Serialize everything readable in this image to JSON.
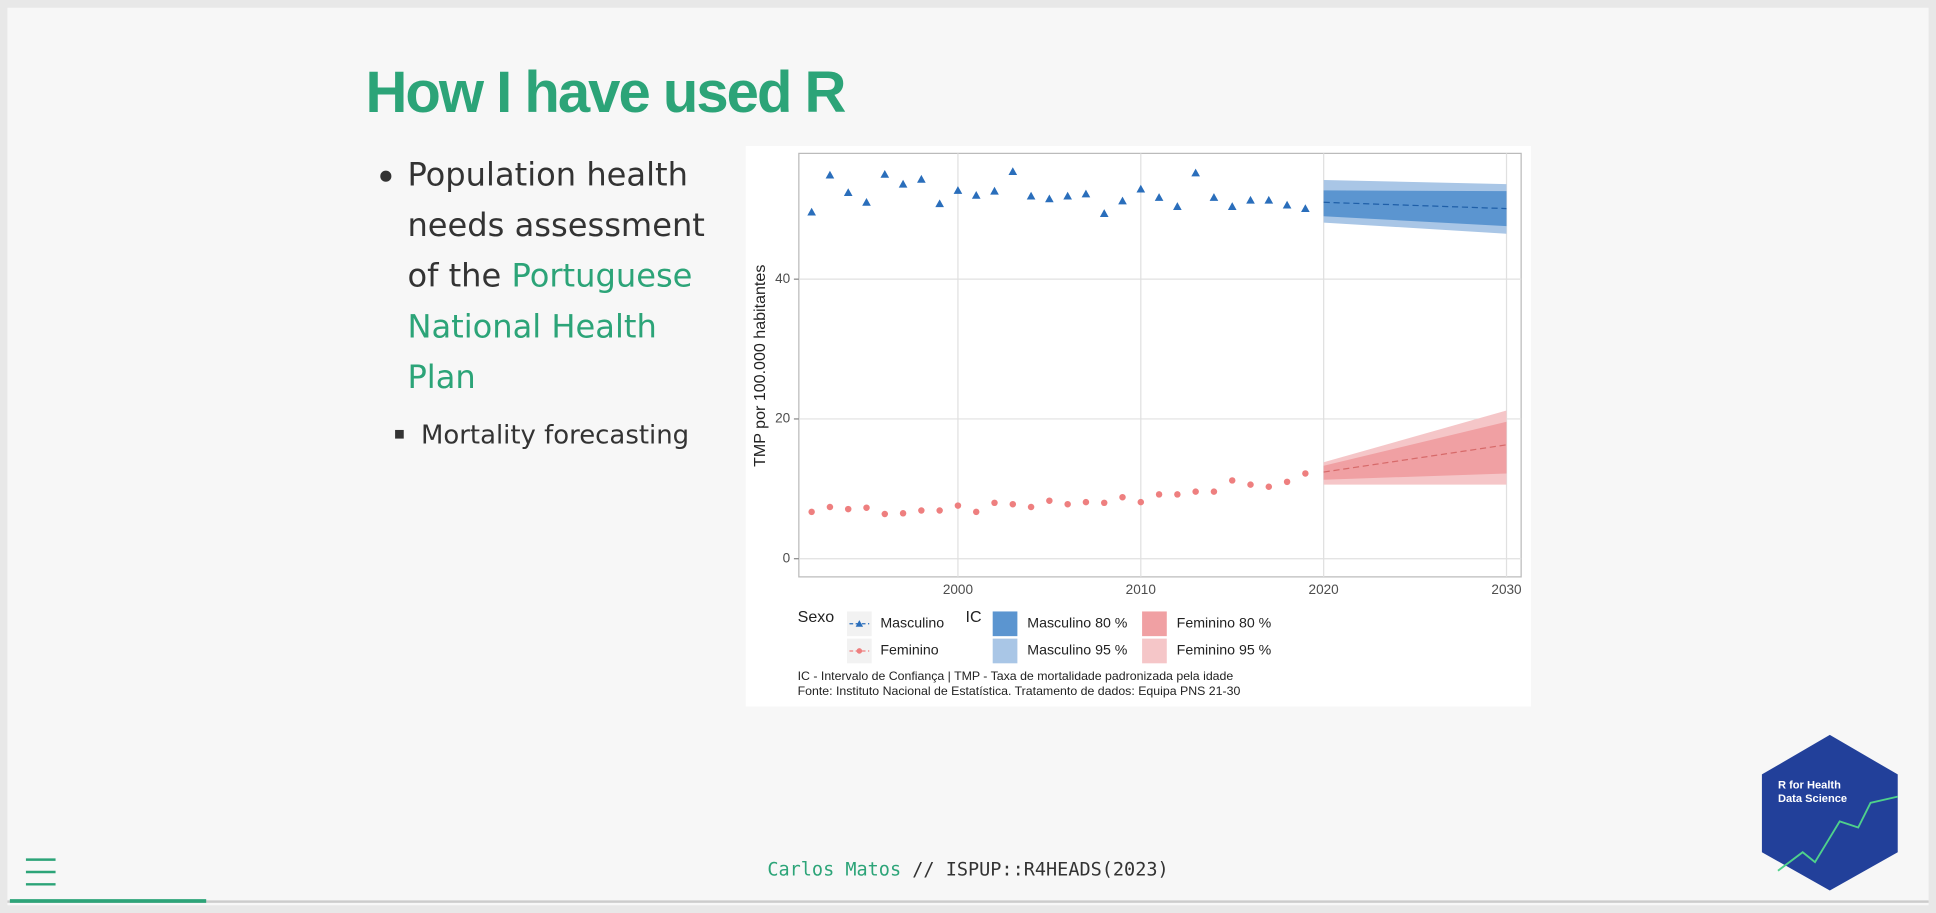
{
  "slide": {
    "title": "How I have used R",
    "bullet": {
      "text": "Population health needs assessment of the ",
      "link": "Portuguese National Health Plan",
      "sub": "Mortality forecasting"
    },
    "footer": {
      "author": "Carlos Matos",
      "rest": " // ISPUP::R4HEADS(2023)"
    },
    "logo": [
      "R for Health",
      "Data Science"
    ]
  },
  "chart_data": {
    "type": "scatter",
    "ylabel": "TMP por 100.000 habitantes",
    "xlim": [
      1991.3,
      2030.8
    ],
    "ylim": [
      -2.6,
      58
    ],
    "xticks": [
      2000,
      2010,
      2020,
      2030
    ],
    "yticks": [
      0,
      20,
      40
    ],
    "grid": true,
    "x": [
      1992,
      1993,
      1994,
      1995,
      1996,
      1997,
      1998,
      1999,
      2000,
      2001,
      2002,
      2003,
      2004,
      2005,
      2006,
      2007,
      2008,
      2009,
      2010,
      2011,
      2012,
      2013,
      2014,
      2015,
      2016,
      2017,
      2018,
      2019
    ],
    "x_forecast": [
      2020,
      2030
    ],
    "legend_title": "Sexo",
    "interval_title": "IC",
    "series": [
      {
        "name": "Masculino",
        "color": "#2a6ebb",
        "marker": "triangle",
        "values": [
          49.6,
          54.9,
          52.4,
          51.0,
          55.0,
          53.6,
          54.3,
          50.8,
          52.7,
          52.0,
          52.6,
          55.4,
          51.9,
          51.5,
          51.9,
          52.2,
          49.4,
          51.2,
          52.9,
          51.7,
          50.4,
          55.2,
          51.7,
          50.4,
          51.3,
          51.3,
          50.6,
          50.1
        ],
        "forecast": [
          51.0,
          50.1
        ]
      },
      {
        "name": "Feminino",
        "color": "#ee7f7f",
        "marker": "circle",
        "values": [
          6.7,
          7.4,
          7.1,
          7.3,
          6.4,
          6.5,
          6.9,
          6.9,
          7.6,
          6.7,
          8.0,
          7.8,
          7.4,
          8.3,
          7.8,
          8.1,
          8.0,
          8.8,
          8.1,
          9.2,
          9.2,
          9.6,
          9.6,
          11.2,
          10.6,
          10.3,
          11.0,
          12.2
        ],
        "forecast": [
          12.4,
          16.3
        ]
      }
    ],
    "intervals": [
      {
        "name": "Masculino 80 %",
        "color": "#5b95d0",
        "lower": [
          49.0,
          47.6
        ],
        "upper": [
          52.7,
          52.6
        ]
      },
      {
        "name": "Masculino 95 %",
        "color": "#a9c6e6",
        "lower": [
          48.1,
          46.5
        ],
        "upper": [
          54.2,
          53.6
        ]
      },
      {
        "name": "Feminino 80 %",
        "color": "#f0a0a3",
        "lower": [
          11.3,
          12.2
        ],
        "upper": [
          13.3,
          19.6
        ]
      },
      {
        "name": "Feminino 95 %",
        "color": "#f5c6c8",
        "lower": [
          10.6,
          10.6
        ],
        "upper": [
          13.8,
          21.2
        ]
      }
    ],
    "caption": [
      "IC - Intervalo de Confiança | TMP - Taxa de mortalidade padronizada pela idade",
      "Fonte: Instituto Nacional de Estatística. Tratamento de dados: Equipa PNS 21-30"
    ]
  }
}
